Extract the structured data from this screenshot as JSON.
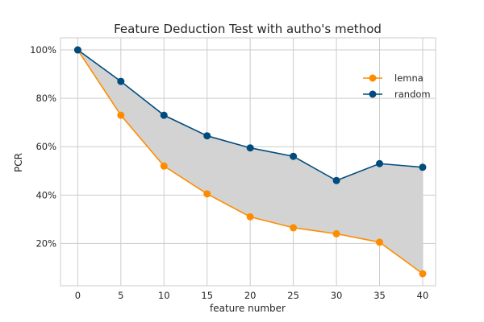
{
  "chart_data": {
    "type": "line",
    "title": "Feature Deduction Test with autho's method",
    "xlabel": "feature number",
    "ylabel": "PCR",
    "x": [
      0,
      5,
      10,
      15,
      20,
      25,
      30,
      35,
      40
    ],
    "xticks": [
      "0",
      "5",
      "10",
      "15",
      "20",
      "25",
      "30",
      "35",
      "40"
    ],
    "yticks": [
      {
        "value": 20,
        "label": "20%"
      },
      {
        "value": 40,
        "label": "40%"
      },
      {
        "value": 60,
        "label": "60%"
      },
      {
        "value": 80,
        "label": "80%"
      },
      {
        "value": 100,
        "label": "100%"
      }
    ],
    "xlim": [
      -2,
      41.5
    ],
    "ylim": [
      2.5,
      105
    ],
    "grid": true,
    "legend_position": "upper-right",
    "fill_between": {
      "color": "#d3d3d3"
    },
    "series": [
      {
        "name": "lemna",
        "color": "#ff8c00",
        "values": [
          100,
          73,
          52,
          40.5,
          31,
          26.5,
          24,
          20.5,
          7.5
        ]
      },
      {
        "name": "random",
        "color": "#004c7f",
        "values": [
          100,
          87,
          73,
          64.5,
          59.5,
          56,
          46,
          53,
          51.5
        ]
      }
    ]
  }
}
